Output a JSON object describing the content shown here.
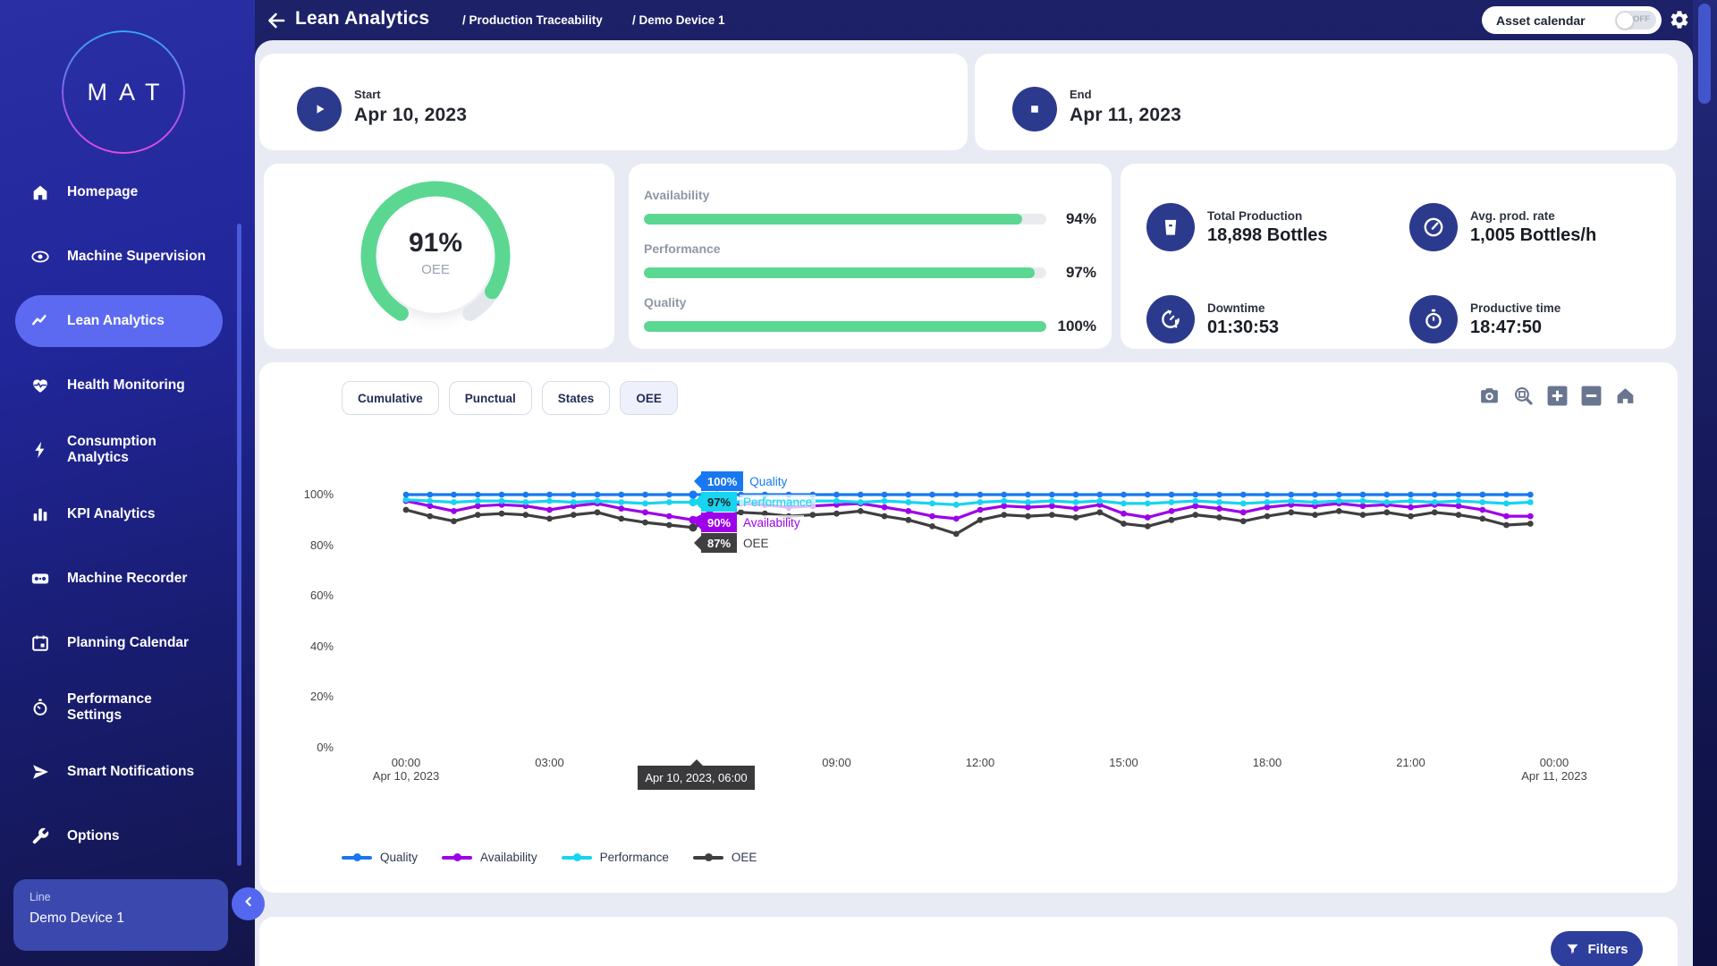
{
  "app": {
    "logo_text": "MAT"
  },
  "header": {
    "title": "Lean Analytics",
    "breadcrumbs": [
      "/ Production Traceability",
      "/ Demo Device 1"
    ],
    "asset_calendar": {
      "label": "Asset calendar",
      "state": "OFF"
    }
  },
  "sidebar": {
    "items": [
      {
        "label": "Homepage",
        "icon": "home-icon",
        "active": false
      },
      {
        "label": "Machine Supervision",
        "icon": "eye-icon",
        "active": false
      },
      {
        "label": "Lean Analytics",
        "icon": "trend-icon",
        "active": true
      },
      {
        "label": "Health Monitoring",
        "icon": "heart-pulse-icon",
        "active": false
      },
      {
        "label": "Consumption Analytics",
        "icon": "bolt-icon",
        "active": false
      },
      {
        "label": "KPI Analytics",
        "icon": "bar-chart-icon",
        "active": false
      },
      {
        "label": "Machine Recorder",
        "icon": "recorder-icon",
        "active": false
      },
      {
        "label": "Planning Calendar",
        "icon": "calendar-icon",
        "active": false
      },
      {
        "label": "Performance Settings",
        "icon": "stopwatch-icon",
        "active": false
      },
      {
        "label": "Smart Notifications",
        "icon": "send-icon",
        "active": false
      },
      {
        "label": "Options",
        "icon": "wrench-icon",
        "active": false
      }
    ],
    "device": {
      "label": "Line",
      "name": "Demo Device 1"
    }
  },
  "range": {
    "start": {
      "label": "Start",
      "date": "Apr 10, 2023"
    },
    "end": {
      "label": "End",
      "date": "Apr 11, 2023"
    }
  },
  "oee_gauge": {
    "value": 91,
    "display": "91%",
    "label": "OEE",
    "color": "#5bd792",
    "track_color": "#e4e7ec"
  },
  "kpi_bars": [
    {
      "label": "Availability",
      "value": 94,
      "display": "94%"
    },
    {
      "label": "Performance",
      "value": 97,
      "display": "97%"
    },
    {
      "label": "Quality",
      "value": 100,
      "display": "100%"
    }
  ],
  "stats": [
    {
      "label": "Total Production",
      "value": "18,898 Bottles",
      "icon": "production-icon"
    },
    {
      "label": "Avg. prod. rate",
      "value": "1,005 Bottles/h",
      "icon": "rate-icon"
    },
    {
      "label": "Downtime",
      "value": "01:30:53",
      "icon": "downtime-icon"
    },
    {
      "label": "Productive time",
      "value": "18:47:50",
      "icon": "productive-time-icon"
    }
  ],
  "chart_tabs": [
    {
      "label": "Cumulative",
      "active": false
    },
    {
      "label": "Punctual",
      "active": false
    },
    {
      "label": "States",
      "active": false
    },
    {
      "label": "OEE",
      "active": true
    }
  ],
  "chart_toolbar": [
    "camera-icon",
    "zoom-box-icon",
    "zoom-in-icon",
    "zoom-out-icon",
    "home-reset-icon"
  ],
  "chart_data": {
    "type": "line",
    "title": "OEE components over time",
    "x_start": "Apr 10, 2023 00:00",
    "x_step_minutes": 30,
    "ylim": [
      0,
      100
    ],
    "y_ticks": [
      "100%",
      "80%",
      "60%",
      "40%",
      "20%",
      "0%"
    ],
    "x_ticks": [
      {
        "label": "00:00",
        "sublabel": "Apr 10, 2023",
        "hidden": false
      },
      {
        "label": "03:00",
        "sublabel": "",
        "hidden": false
      },
      {
        "label": "06:00",
        "sublabel": "",
        "hidden": true
      },
      {
        "label": "09:00",
        "sublabel": "",
        "hidden": false
      },
      {
        "label": "12:00",
        "sublabel": "",
        "hidden": false
      },
      {
        "label": "15:00",
        "sublabel": "",
        "hidden": false
      },
      {
        "label": "18:00",
        "sublabel": "",
        "hidden": false
      },
      {
        "label": "21:00",
        "sublabel": "",
        "hidden": false
      },
      {
        "label": "00:00",
        "sublabel": "Apr 11, 2023",
        "hidden": false
      }
    ],
    "grid": false,
    "legend_position": "bottom-left",
    "series": [
      {
        "name": "Quality",
        "color": "#1878f2",
        "flag_text_color": "#ffffff",
        "values": [
          100,
          100,
          100,
          100,
          100,
          100,
          100,
          100,
          100,
          100,
          100,
          100,
          100,
          100,
          100,
          100,
          100,
          100,
          100,
          100,
          100,
          100,
          100,
          100,
          100,
          100,
          100,
          100,
          100,
          100,
          100,
          100,
          100,
          100,
          100,
          100,
          100,
          100,
          100,
          100,
          100,
          100,
          100,
          100,
          100,
          100,
          100,
          100
        ]
      },
      {
        "name": "Availability",
        "color": "#9d00eb",
        "flag_text_color": "#ffffff",
        "values": [
          97.5,
          95.5,
          93.5,
          95.5,
          96,
          95.5,
          94,
          95.5,
          96.5,
          94.5,
          93,
          91.5,
          90,
          94.5,
          96.5,
          96,
          95,
          95.5,
          96,
          96.5,
          95,
          93.5,
          91.5,
          90.5,
          94,
          95.5,
          95,
          95.5,
          94.5,
          96,
          92.5,
          91,
          93.5,
          95.5,
          94.5,
          93,
          95,
          96,
          95.5,
          96.5,
          95.5,
          96,
          95,
          96,
          95.5,
          94,
          91.5,
          91.5
        ]
      },
      {
        "name": "Performance",
        "color": "#17d4f0",
        "flag_text_color": "#222222",
        "values": [
          98,
          97.5,
          97,
          97.5,
          97.5,
          97,
          97.5,
          97,
          97.5,
          97,
          96.5,
          97,
          97,
          97.5,
          97,
          97.5,
          97,
          97.5,
          97.5,
          97,
          97.5,
          97,
          96.5,
          96,
          97,
          97.5,
          97,
          97.5,
          97,
          97.5,
          96.5,
          96.5,
          97,
          97.5,
          97,
          96.5,
          97,
          97.5,
          97,
          97.5,
          97.5,
          97,
          97.5,
          97,
          97.5,
          97,
          96.5,
          97
        ]
      },
      {
        "name": "OEE",
        "color": "#3f3f41",
        "flag_text_color": "#ffffff",
        "values": [
          94,
          91.5,
          89.5,
          92,
          92.5,
          92,
          90.5,
          92,
          93,
          90.5,
          89,
          88,
          87,
          91,
          93,
          92.5,
          91.5,
          92,
          92.5,
          93.5,
          91.5,
          90,
          87.5,
          84.5,
          90,
          92,
          91.5,
          92,
          91,
          93,
          88.5,
          87.5,
          90,
          92,
          91,
          89.5,
          91.5,
          93,
          92,
          93.5,
          92,
          93,
          91.5,
          93,
          92,
          90.5,
          88,
          88.5
        ]
      }
    ],
    "legend_order": [
      "Quality",
      "Availability",
      "Performance",
      "OEE"
    ],
    "hover": {
      "index": 12,
      "x_label": "Apr 10, 2023, 06:00",
      "points": [
        {
          "series": "Quality",
          "value": "100%"
        },
        {
          "series": "Performance",
          "value": "97%"
        },
        {
          "series": "Availability",
          "value": "90%"
        },
        {
          "series": "OEE",
          "value": "87%"
        }
      ]
    }
  },
  "bottom_panel": {
    "filters_label": "Filters"
  }
}
